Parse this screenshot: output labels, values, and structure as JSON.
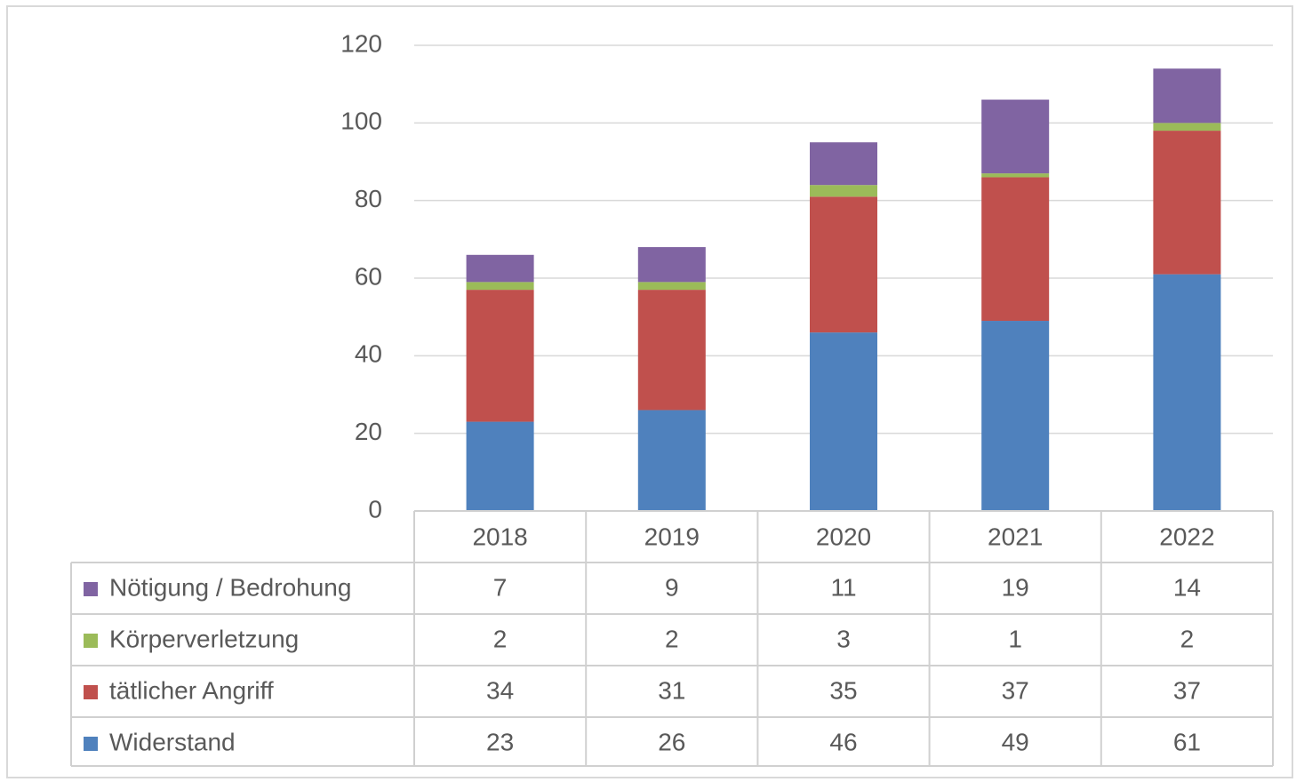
{
  "chart_data": {
    "type": "bar",
    "stacked": true,
    "categories": [
      "2018",
      "2019",
      "2020",
      "2021",
      "2022"
    ],
    "series": [
      {
        "name": "Widerstand",
        "color": "#4f81bd",
        "values": [
          23,
          26,
          46,
          49,
          61
        ]
      },
      {
        "name": "tätlicher Angriff",
        "color": "#c0504d",
        "values": [
          34,
          31,
          35,
          37,
          37
        ]
      },
      {
        "name": "Körperverletzung",
        "color": "#9bbb59",
        "values": [
          2,
          2,
          3,
          1,
          2
        ]
      },
      {
        "name": "Nötigung / Bedrohung",
        "color": "#8064a2",
        "values": [
          7,
          9,
          11,
          19,
          14
        ]
      }
    ],
    "ylim": [
      0,
      120
    ],
    "yticks": [
      0,
      20,
      40,
      60,
      80,
      100,
      120
    ],
    "grid": true
  }
}
